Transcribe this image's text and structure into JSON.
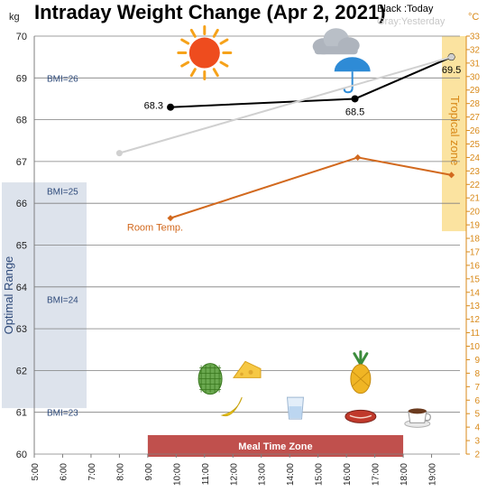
{
  "chart_data": {
    "type": "line",
    "title": "Intraday Weight Change (Apr 2, 2021)",
    "left_unit": "kg",
    "right_unit": "°C",
    "legend": {
      "today": "Black :Today",
      "yesterday": "Gray:Yesterday"
    },
    "x_ticks": [
      "5:00",
      "6:00",
      "7:00",
      "8:00",
      "9:00",
      "10:00",
      "11:00",
      "12:00",
      "13:00",
      "14:00",
      "15:00",
      "16:00",
      "17:00",
      "18:00",
      "19:00"
    ],
    "xlim": [
      5,
      20
    ],
    "ylim": [
      60,
      70
    ],
    "y_ticks": [
      60,
      61,
      62,
      63,
      64,
      65,
      66,
      67,
      68,
      69,
      70
    ],
    "y2lim": [
      2,
      33
    ],
    "y2_ticks": [
      2,
      3,
      4,
      5,
      6,
      7,
      8,
      9,
      10,
      11,
      12,
      13,
      14,
      15,
      16,
      17,
      18,
      19,
      20,
      21,
      22,
      23,
      24,
      25,
      26,
      27,
      28,
      29,
      30,
      31,
      32,
      33
    ],
    "series": [
      {
        "key": "today",
        "color": "#000000",
        "axis": "left",
        "points": [
          {
            "x": 9.8,
            "y": 68.3,
            "label": "68.3"
          },
          {
            "x": 16.3,
            "y": 68.5,
            "label": "68.5"
          },
          {
            "x": 19.7,
            "y": 69.5,
            "label": "69.5"
          }
        ]
      },
      {
        "key": "yesterday",
        "color": "#d0d0d0",
        "axis": "left",
        "points": [
          {
            "x": 8.0,
            "y": 67.2
          },
          {
            "x": 19.7,
            "y": 69.5
          }
        ]
      },
      {
        "key": "room_temp",
        "name": "Room Temp.",
        "color": "#d2691e",
        "axis": "right",
        "points": [
          {
            "x": 9.8,
            "y": 19.5
          },
          {
            "x": 16.4,
            "y": 24.0
          },
          {
            "x": 19.7,
            "y": 22.7
          }
        ]
      }
    ],
    "bmi_lines": [
      {
        "label": "BMI=26",
        "value": 69.0
      },
      {
        "label": "BMI=25",
        "value": 66.3
      },
      {
        "label": "BMI=24",
        "value": 63.7
      },
      {
        "label": "BMI=23",
        "value": 61.0
      }
    ],
    "optimal_range": {
      "label": "Optimal Range",
      "from": 61.1,
      "to": 66.5,
      "color": "#dde3ec"
    },
    "tropical_zone": {
      "label": "Tropical zone",
      "from_temp": 19,
      "to_temp": 33,
      "color": "#fbe3a0"
    },
    "meal_zone": {
      "label": "Meal Time Zone",
      "from": 9,
      "to": 18,
      "color": "#c0504d"
    },
    "icons": [
      {
        "name": "sun-icon",
        "x": 11.0,
        "y": 69.6
      },
      {
        "name": "cloud-umbrella-icon",
        "x": 15.7,
        "y": 69.8
      },
      {
        "name": "custard-apple-icon",
        "x": 11.2,
        "y": 61.8
      },
      {
        "name": "cheese-icon",
        "x": 12.5,
        "y": 62.0
      },
      {
        "name": "banana-icon",
        "x": 12.0,
        "y": 61.1
      },
      {
        "name": "water-glass-icon",
        "x": 14.2,
        "y": 61.1
      },
      {
        "name": "pineapple-icon",
        "x": 16.5,
        "y": 61.8
      },
      {
        "name": "meat-icon",
        "x": 16.5,
        "y": 60.9
      },
      {
        "name": "coffee-cup-icon",
        "x": 18.5,
        "y": 60.9
      }
    ]
  }
}
